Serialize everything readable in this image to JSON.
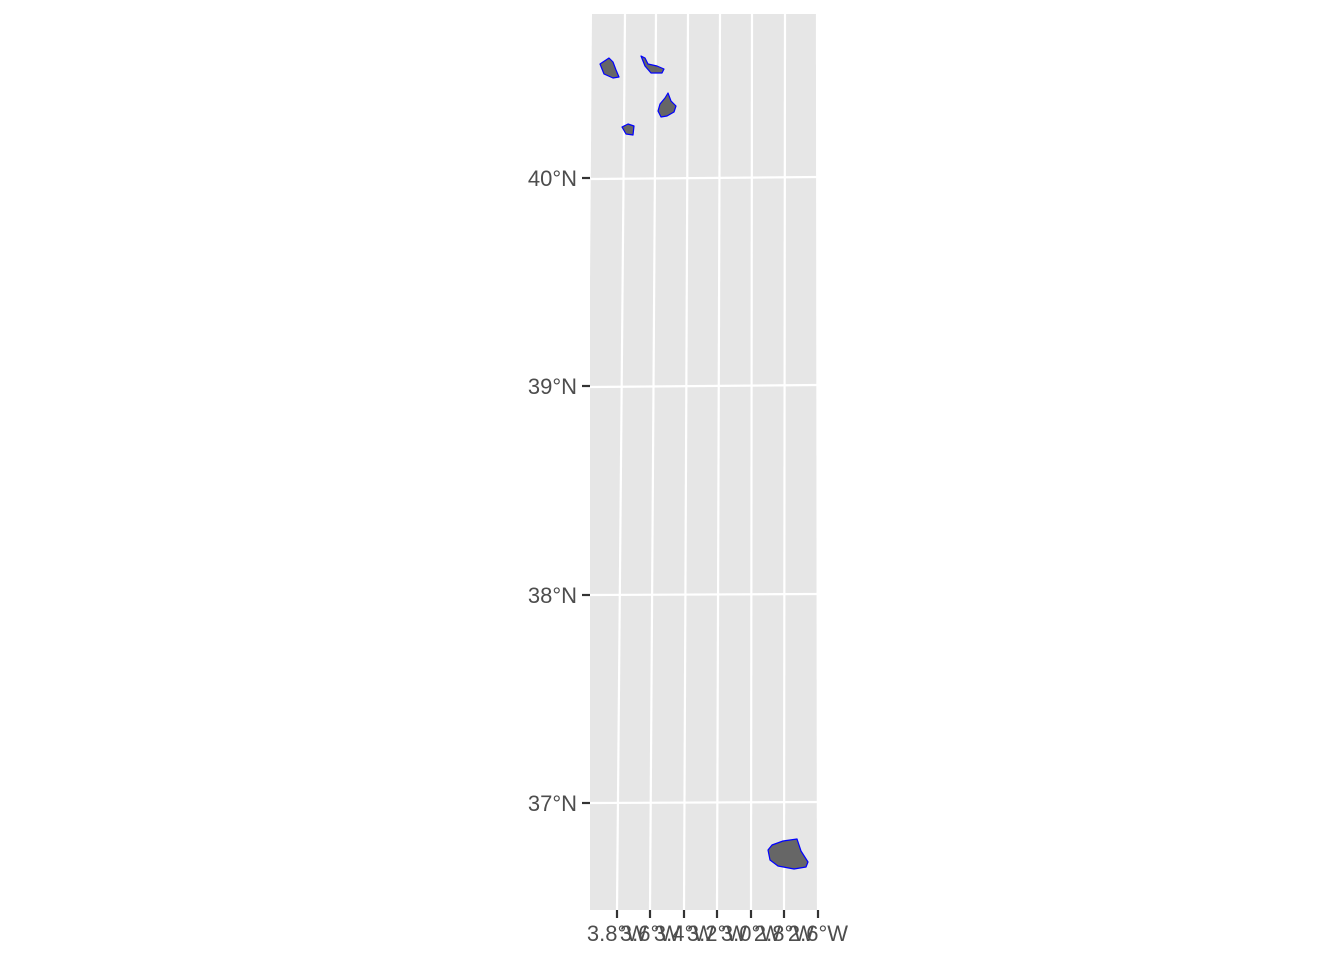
{
  "map": {
    "panel_color": "#e6e6e6",
    "grid_color": "#ffffff",
    "feature_fill": "#666666",
    "feature_stroke": "#0000ff",
    "y_axis": {
      "ticks": [
        {
          "value": 40,
          "label": "40°N"
        },
        {
          "value": 39,
          "label": "39°N"
        },
        {
          "value": 38,
          "label": "38°N"
        },
        {
          "value": 37,
          "label": "37°N"
        }
      ]
    },
    "x_axis": {
      "ticks": [
        {
          "value": -3.8,
          "label": "3.8°W"
        },
        {
          "value": -3.6,
          "label": "3.6°W"
        },
        {
          "value": -3.4,
          "label": "3.4°W"
        },
        {
          "value": -3.2,
          "label": "3.2°W"
        },
        {
          "value": -3.0,
          "label": "3.0°W"
        },
        {
          "value": -2.8,
          "label": "2.8°W"
        },
        {
          "value": -2.6,
          "label": "2.6°W"
        }
      ]
    },
    "features": [
      {
        "name": "feature-1"
      },
      {
        "name": "feature-2"
      },
      {
        "name": "feature-3"
      },
      {
        "name": "feature-4"
      },
      {
        "name": "feature-5"
      }
    ]
  }
}
